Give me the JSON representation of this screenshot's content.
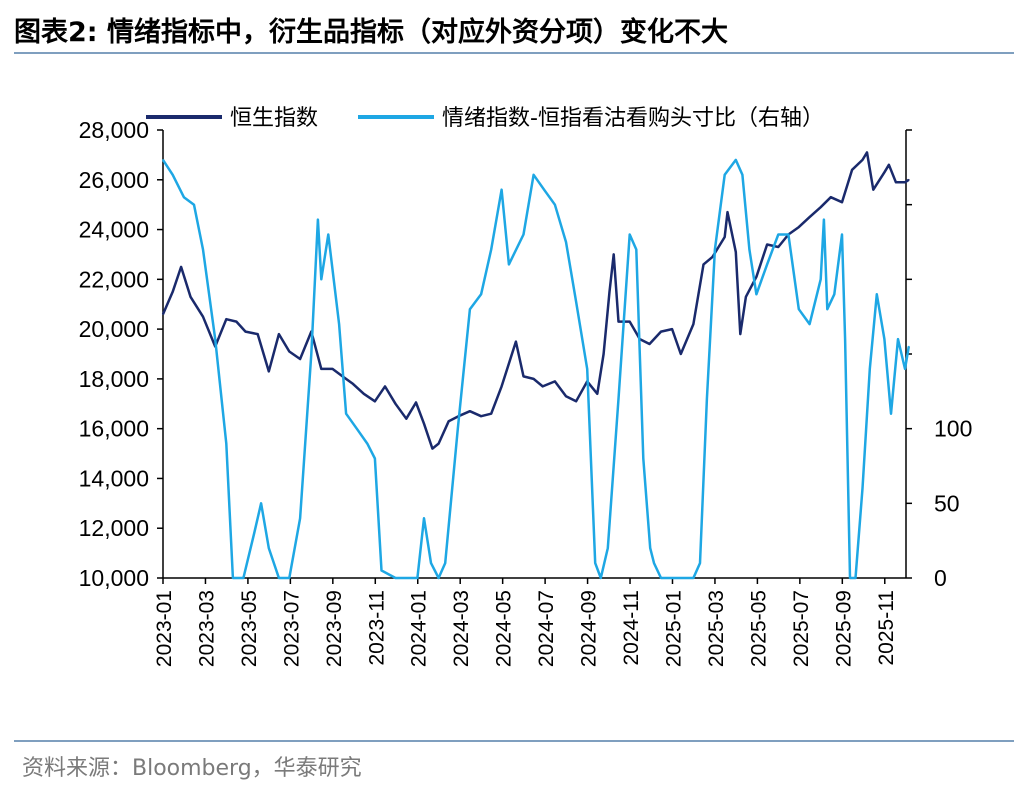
{
  "header": {
    "title": "图表2:  情绪指标中，衍生品指标（对应外资分项）变化不大"
  },
  "footer": {
    "source": "资料来源：Bloomberg，华泰研究"
  },
  "colors": {
    "hsi": "#1a2a6c",
    "sentiment": "#1ea7e4",
    "rule": "#7f9fbf"
  },
  "chart_data": {
    "type": "line",
    "title": "",
    "left_axis": {
      "ticks": [
        "10,000",
        "12,000",
        "14,000",
        "16,000",
        "18,000",
        "20,000",
        "22,000",
        "24,000",
        "26,000",
        "28,000"
      ],
      "ylim": [
        10000,
        28000
      ]
    },
    "right_axis": {
      "ticks": [
        "0",
        "50",
        "100"
      ],
      "ylim": [
        0,
        300
      ]
    },
    "x_ticks": [
      "2023-01",
      "2023-03",
      "2023-05",
      "2023-07",
      "2023-09",
      "2023-11",
      "2024-01",
      "2024-03",
      "2024-05",
      "2024-07",
      "2024-09",
      "2024-11",
      "2025-01",
      "2025-03",
      "2025-05",
      "2025-07",
      "2025-09",
      "2025-11"
    ],
    "xlim": [
      "2023-01",
      "2025-12"
    ],
    "legend_position": "top",
    "series": [
      {
        "name": "恒生指数",
        "axis": "left",
        "points": [
          [
            "2023-01",
            20600
          ],
          [
            "2023-01-15",
            21500
          ],
          [
            "2023-01-27",
            22500
          ],
          [
            "2023-02-10",
            21300
          ],
          [
            "2023-02-28",
            20500
          ],
          [
            "2023-03-15",
            19300
          ],
          [
            "2023-03-31",
            20400
          ],
          [
            "2023-04-15",
            20300
          ],
          [
            "2023-04-28",
            19900
          ],
          [
            "2023-05-15",
            19800
          ],
          [
            "2023-05-31",
            18300
          ],
          [
            "2023-06-15",
            19800
          ],
          [
            "2023-06-30",
            19100
          ],
          [
            "2023-07-15",
            18800
          ],
          [
            "2023-07-31",
            19900
          ],
          [
            "2023-08-15",
            18400
          ],
          [
            "2023-08-31",
            18400
          ],
          [
            "2023-09-15",
            18100
          ],
          [
            "2023-09-30",
            17800
          ],
          [
            "2023-10-15",
            17400
          ],
          [
            "2023-10-31",
            17100
          ],
          [
            "2023-11-15",
            17700
          ],
          [
            "2023-11-30",
            17000
          ],
          [
            "2023-12-15",
            16400
          ],
          [
            "2023-12-29",
            17050
          ],
          [
            "2024-01-10",
            16200
          ],
          [
            "2024-01-22",
            15200
          ],
          [
            "2024-01-31",
            15400
          ],
          [
            "2024-02-15",
            16300
          ],
          [
            "2024-02-29",
            16500
          ],
          [
            "2024-03-15",
            16700
          ],
          [
            "2024-03-31",
            16500
          ],
          [
            "2024-04-15",
            16600
          ],
          [
            "2024-04-30",
            17700
          ],
          [
            "2024-05-20",
            19500
          ],
          [
            "2024-05-31",
            18100
          ],
          [
            "2024-06-15",
            18000
          ],
          [
            "2024-06-28",
            17700
          ],
          [
            "2024-07-15",
            17900
          ],
          [
            "2024-07-31",
            17300
          ],
          [
            "2024-08-15",
            17100
          ],
          [
            "2024-08-31",
            17900
          ],
          [
            "2024-09-15",
            17400
          ],
          [
            "2024-09-24",
            19000
          ],
          [
            "2024-10-02",
            21500
          ],
          [
            "2024-10-08",
            23000
          ],
          [
            "2024-10-15",
            20300
          ],
          [
            "2024-10-31",
            20300
          ],
          [
            "2024-11-15",
            19600
          ],
          [
            "2024-11-29",
            19400
          ],
          [
            "2024-12-15",
            19900
          ],
          [
            "2024-12-31",
            20000
          ],
          [
            "2025-01-13",
            19000
          ],
          [
            "2025-01-31",
            20200
          ],
          [
            "2025-02-15",
            22600
          ],
          [
            "2025-02-28",
            22900
          ],
          [
            "2025-03-15",
            23700
          ],
          [
            "2025-03-19",
            24700
          ],
          [
            "2025-03-31",
            23100
          ],
          [
            "2025-04-07",
            19800
          ],
          [
            "2025-04-15",
            21300
          ],
          [
            "2025-04-30",
            22100
          ],
          [
            "2025-05-15",
            23400
          ],
          [
            "2025-05-31",
            23300
          ],
          [
            "2025-06-15",
            23800
          ],
          [
            "2025-06-30",
            24100
          ],
          [
            "2025-07-15",
            24500
          ],
          [
            "2025-07-31",
            24900
          ],
          [
            "2025-08-15",
            25300
          ],
          [
            "2025-08-31",
            25100
          ],
          [
            "2025-09-15",
            26400
          ],
          [
            "2025-09-30",
            26800
          ],
          [
            "2025-10-06",
            27100
          ],
          [
            "2025-10-15",
            25600
          ],
          [
            "2025-10-31",
            26300
          ],
          [
            "2025-11-07",
            26600
          ],
          [
            "2025-11-17",
            25900
          ],
          [
            "2025-11-30",
            25900
          ],
          [
            "2025-12-05",
            26000
          ]
        ]
      },
      {
        "name": "情绪指数-恒指看沽看购头寸比（右轴）",
        "axis": "right",
        "points": [
          [
            "2023-01",
            280
          ],
          [
            "2023-01-15",
            270
          ],
          [
            "2023-01-31",
            255
          ],
          [
            "2023-02-15",
            250
          ],
          [
            "2023-02-28",
            220
          ],
          [
            "2023-03-15",
            160
          ],
          [
            "2023-03-31",
            90
          ],
          [
            "2023-04-10",
            0
          ],
          [
            "2023-04-25",
            0
          ],
          [
            "2023-05-10",
            30
          ],
          [
            "2023-05-20",
            50
          ],
          [
            "2023-05-31",
            20
          ],
          [
            "2023-06-15",
            0
          ],
          [
            "2023-06-30",
            0
          ],
          [
            "2023-07-15",
            40
          ],
          [
            "2023-07-31",
            150
          ],
          [
            "2023-08-10",
            240
          ],
          [
            "2023-08-15",
            200
          ],
          [
            "2023-08-25",
            230
          ],
          [
            "2023-09-10",
            170
          ],
          [
            "2023-09-20",
            110
          ],
          [
            "2023-10-05",
            100
          ],
          [
            "2023-10-20",
            90
          ],
          [
            "2023-10-31",
            80
          ],
          [
            "2023-11-10",
            5
          ],
          [
            "2023-11-30",
            0
          ],
          [
            "2023-12-15",
            0
          ],
          [
            "2023-12-31",
            0
          ],
          [
            "2024-01-10",
            40
          ],
          [
            "2024-01-20",
            10
          ],
          [
            "2024-01-31",
            0
          ],
          [
            "2024-02-10",
            10
          ],
          [
            "2024-02-28",
            100
          ],
          [
            "2024-03-15",
            180
          ],
          [
            "2024-03-31",
            190
          ],
          [
            "2024-04-15",
            220
          ],
          [
            "2024-04-30",
            260
          ],
          [
            "2024-05-10",
            210
          ],
          [
            "2024-05-31",
            230
          ],
          [
            "2024-06-15",
            270
          ],
          [
            "2024-06-30",
            260
          ],
          [
            "2024-07-15",
            250
          ],
          [
            "2024-07-31",
            225
          ],
          [
            "2024-08-15",
            185
          ],
          [
            "2024-08-31",
            140
          ],
          [
            "2024-09-12",
            10
          ],
          [
            "2024-09-20",
            0
          ],
          [
            "2024-09-30",
            20
          ],
          [
            "2024-10-15",
            120
          ],
          [
            "2024-10-31",
            230
          ],
          [
            "2024-11-10",
            220
          ],
          [
            "2024-11-20",
            80
          ],
          [
            "2024-11-30",
            20
          ],
          [
            "2024-12-05",
            10
          ],
          [
            "2024-12-15",
            0
          ],
          [
            "2024-12-31",
            0
          ],
          [
            "2025-01-15",
            0
          ],
          [
            "2025-01-31",
            0
          ],
          [
            "2025-02-10",
            10
          ],
          [
            "2025-02-20",
            120
          ],
          [
            "2025-03-01",
            220
          ],
          [
            "2025-03-15",
            270
          ],
          [
            "2025-03-31",
            280
          ],
          [
            "2025-04-10",
            270
          ],
          [
            "2025-04-20",
            220
          ],
          [
            "2025-04-30",
            190
          ],
          [
            "2025-05-15",
            210
          ],
          [
            "2025-05-31",
            230
          ],
          [
            "2025-06-15",
            230
          ],
          [
            "2025-06-30",
            180
          ],
          [
            "2025-07-15",
            170
          ],
          [
            "2025-07-31",
            200
          ],
          [
            "2025-08-05",
            240
          ],
          [
            "2025-08-10",
            180
          ],
          [
            "2025-08-20",
            190
          ],
          [
            "2025-08-31",
            230
          ],
          [
            "2025-09-05",
            160
          ],
          [
            "2025-09-12",
            0
          ],
          [
            "2025-09-20",
            0
          ],
          [
            "2025-09-30",
            60
          ],
          [
            "2025-10-10",
            140
          ],
          [
            "2025-10-20",
            190
          ],
          [
            "2025-10-31",
            160
          ],
          [
            "2025-11-10",
            110
          ],
          [
            "2025-11-20",
            160
          ],
          [
            "2025-11-30",
            140
          ],
          [
            "2025-12-05",
            155
          ]
        ]
      }
    ]
  }
}
